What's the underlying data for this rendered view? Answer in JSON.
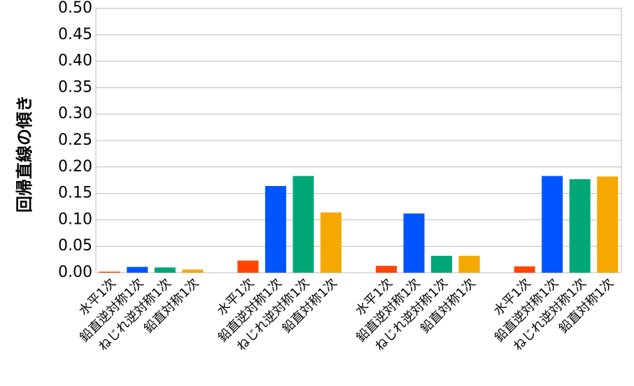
{
  "chart_data": {
    "type": "bar",
    "y_label": "回帰直線の傾き",
    "categories": [
      "水平1次",
      "鉛直逆対称1次",
      "ねじれ逆対称1次",
      "鉛直対称1次",
      null,
      "水平1次",
      "鉛直逆対称1次",
      "ねじれ逆対称1次",
      "鉛直対称1次",
      null,
      "水平1次",
      "鉛直逆対称1次",
      "ねじれ逆対称1次",
      "鉛直対称1次",
      null,
      "水平1次",
      "鉛直逆対称1次",
      "ねじれ逆対称1次",
      "鉛直対称1次"
    ],
    "values": [
      0.002,
      0.011,
      0.01,
      0.006,
      null,
      0.023,
      0.164,
      0.183,
      0.114,
      null,
      0.013,
      0.112,
      0.032,
      0.032,
      null,
      0.012,
      0.183,
      0.177,
      0.182
    ],
    "colors": [
      "#ff4500",
      "#0055ff",
      "#00a878",
      "#f5a800",
      null,
      "#ff4500",
      "#0055ff",
      "#00a878",
      "#f5a800",
      null,
      "#ff4500",
      "#0055ff",
      "#00a878",
      "#f5a800",
      null,
      "#ff4500",
      "#0055ff",
      "#00a878",
      "#f5a800"
    ],
    "ylim": [
      0,
      0.5
    ],
    "yticks": [
      {
        "value": 0,
        "label": "0.00"
      },
      {
        "value": 0.05,
        "label": "0.05"
      },
      {
        "value": 0.1,
        "label": "0.10"
      },
      {
        "value": 0.15,
        "label": "0.15"
      },
      {
        "value": 0.2,
        "label": "0.20"
      },
      {
        "value": 0.25,
        "label": "0.25"
      },
      {
        "value": 0.3,
        "label": "0.30"
      },
      {
        "value": 0.35,
        "label": "0.35"
      },
      {
        "value": 0.4,
        "label": "0.40"
      },
      {
        "value": 0.45,
        "label": "0.45"
      },
      {
        "value": 0.5,
        "label": "0.50"
      }
    ],
    "grid": true
  }
}
